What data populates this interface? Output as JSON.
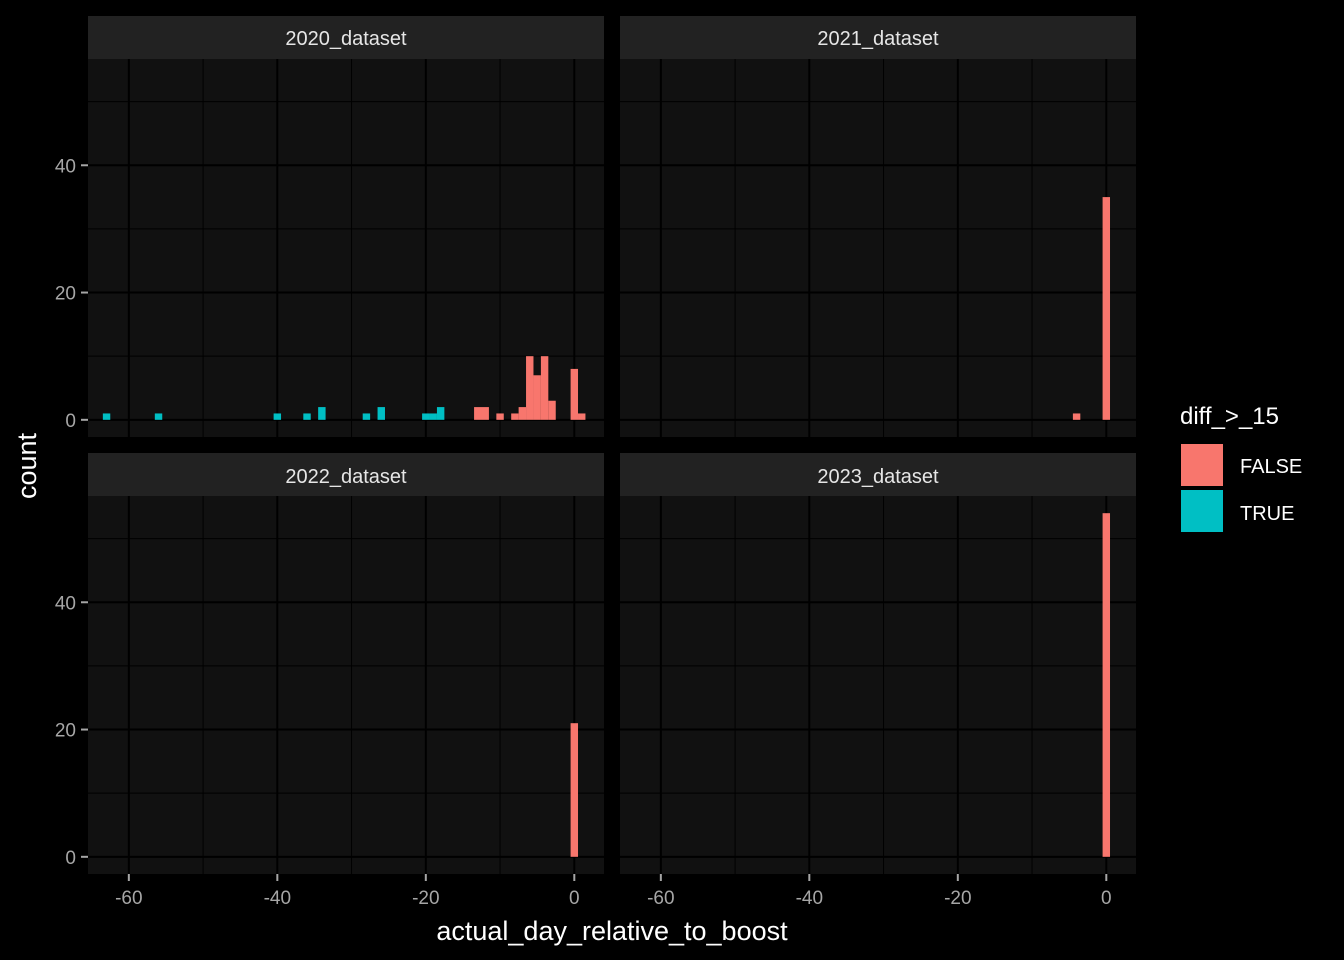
{
  "chart_data": {
    "type": "bar",
    "subtype": "faceted histogram",
    "xlabel": "actual_day_relative_to_boost",
    "ylabel": "count",
    "x_ticks": [
      -60,
      -40,
      -20,
      0
    ],
    "y_ticks": [
      0,
      20,
      40
    ],
    "xlim": [
      -65.5,
      4
    ],
    "ylim": [
      -2.7,
      56.7
    ],
    "bin_width": 1,
    "grid": true,
    "theme": "dark",
    "legend": {
      "title": "diff_>_15",
      "position": "right",
      "entries": [
        {
          "label": "FALSE",
          "color": "#F8766D"
        },
        {
          "label": "TRUE",
          "color": "#00BFC4"
        }
      ]
    },
    "panels": [
      {
        "label": "2020_dataset",
        "series": [
          {
            "name": "FALSE",
            "color": "#F8766D",
            "bins": [
              [
                -13,
                2
              ],
              [
                -12,
                2
              ],
              [
                -10,
                1
              ],
              [
                -8,
                1
              ],
              [
                -7,
                2
              ],
              [
                -6,
                10
              ],
              [
                -5,
                7
              ],
              [
                -4,
                10
              ],
              [
                -3,
                3
              ],
              [
                0,
                8
              ],
              [
                1,
                1
              ]
            ]
          },
          {
            "name": "TRUE",
            "color": "#00BFC4",
            "bins": [
              [
                -63,
                1
              ],
              [
                -56,
                1
              ],
              [
                -40,
                1
              ],
              [
                -36,
                1
              ],
              [
                -34,
                2
              ],
              [
                -28,
                1
              ],
              [
                -26,
                2
              ],
              [
                -20,
                1
              ],
              [
                -19,
                1
              ],
              [
                -18,
                2
              ]
            ]
          }
        ]
      },
      {
        "label": "2021_dataset",
        "series": [
          {
            "name": "FALSE",
            "color": "#F8766D",
            "bins": [
              [
                -4,
                1
              ],
              [
                0,
                35
              ]
            ]
          }
        ]
      },
      {
        "label": "2022_dataset",
        "series": [
          {
            "name": "FALSE",
            "color": "#F8766D",
            "bins": [
              [
                0,
                21
              ]
            ]
          }
        ]
      },
      {
        "label": "2023_dataset",
        "series": [
          {
            "name": "FALSE",
            "color": "#F8766D",
            "bins": [
              [
                0,
                54
              ]
            ]
          }
        ]
      }
    ]
  }
}
